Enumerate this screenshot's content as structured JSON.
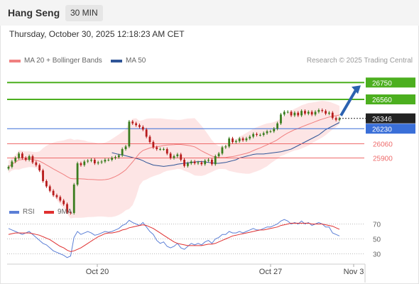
{
  "header": {
    "symbol": "Hang Seng",
    "timeframe": "30 MIN"
  },
  "datetime": "Thursday, October 30, 2025 12:18:23 AM CET",
  "legend": [
    {
      "label": "MA 20 + Bollinger Bands",
      "color": "#f08080"
    },
    {
      "label": "MA 50",
      "color": "#2f5597"
    }
  ],
  "credit": "Research © 2025 Trading Central",
  "chart_data": {
    "type": "candlestick",
    "y_range": [
      25480,
      26880
    ],
    "x_tick_labels": [
      "Oct 20",
      "Oct 27",
      "Nov 3"
    ],
    "last_price": 26346,
    "levels": [
      {
        "value": 26750,
        "label": "26750",
        "kind": "resistance",
        "color": "#4caf1f"
      },
      {
        "value": 26560,
        "label": "26560",
        "kind": "resistance",
        "color": "#4caf1f"
      },
      {
        "value": 26230,
        "label": "26230",
        "kind": "pivot",
        "color": "#3a6fd8"
      },
      {
        "value": 26060,
        "label": "26060",
        "kind": "support",
        "color": "#ee6a6a"
      },
      {
        "value": 25900,
        "label": "25900",
        "kind": "support",
        "color": "#ee6a6a"
      }
    ],
    "close_series": [
      25800,
      25860,
      25900,
      25950,
      25900,
      25880,
      25920,
      25850,
      25820,
      25760,
      25640,
      25580,
      25530,
      25480,
      25460,
      25420,
      25380,
      25290,
      25280,
      25600,
      25840,
      25820,
      25860,
      25870,
      25880,
      25840,
      25850,
      25860,
      25880,
      25880,
      25900,
      25910,
      25930,
      26000,
      26030,
      26310,
      26290,
      26270,
      26250,
      26220,
      26140,
      26080,
      26020,
      26000,
      26000,
      26000,
      25950,
      25900,
      25920,
      25940,
      25880,
      25810,
      25840,
      25860,
      25840,
      25850,
      25830,
      25870,
      25880,
      25830,
      25920,
      25950,
      26020,
      26030,
      26120,
      26080,
      26090,
      26120,
      26100,
      26120,
      26140,
      26170,
      26160,
      26160,
      26180,
      26200,
      26200,
      26230,
      26290,
      26390,
      26420,
      26420,
      26380,
      26410,
      26380,
      26430,
      26400,
      26420,
      26390,
      26420,
      26440,
      26430,
      26400,
      26410,
      26350,
      26330,
      26346
    ],
    "ma50": [
      25960,
      25950,
      25940,
      25935,
      25925,
      25915,
      25905,
      25895,
      25885,
      25870,
      25850,
      25835,
      25820,
      25815,
      25810,
      25805,
      25810,
      25815,
      25820,
      25830,
      25835,
      25840,
      25845,
      25850,
      25855,
      25860,
      25860,
      25855,
      25850,
      25845,
      25840,
      25840,
      25845,
      25850,
      25860,
      25870,
      25880,
      25900,
      25910,
      25920,
      25930,
      25940,
      25945,
      25945,
      25945,
      25950,
      25955,
      25960,
      25965,
      25970,
      25980,
      25990,
      26000,
      26020,
      26040,
      26060,
      26080,
      26100,
      26120,
      26140,
      26160,
      26190,
      26220,
      26240,
      26260,
      26280,
      26300
    ],
    "ma50_start_index": 30,
    "rsi": {
      "y_ticks": [
        70,
        50,
        30
      ],
      "y_range": [
        20,
        80
      ],
      "legend": [
        {
          "label": "RSI",
          "color": "#5b7fd6"
        },
        {
          "label": "9MA",
          "color": "#e03030"
        }
      ],
      "rsi_values": [
        64,
        62,
        60,
        58,
        56,
        58,
        60,
        56,
        52,
        48,
        44,
        42,
        38,
        34,
        32,
        30,
        28,
        25,
        27,
        52,
        60,
        56,
        58,
        60,
        58,
        55,
        56,
        58,
        60,
        59,
        60,
        62,
        64,
        68,
        70,
        75,
        72,
        70,
        68,
        72,
        66,
        60,
        56,
        48,
        44,
        46,
        40,
        38,
        40,
        44,
        38,
        36,
        40,
        44,
        42,
        44,
        42,
        46,
        48,
        44,
        50,
        52,
        56,
        56,
        60,
        58,
        58,
        60,
        58,
        60,
        62,
        64,
        62,
        62,
        64,
        66,
        66,
        68,
        70,
        74,
        76,
        74,
        70,
        72,
        70,
        74,
        70,
        72,
        68,
        70,
        72,
        70,
        66,
        66,
        58,
        56,
        54
      ],
      "ma9_values": [
        56,
        57,
        58,
        58,
        58,
        58,
        58,
        57,
        56,
        55,
        53,
        51,
        49,
        46,
        43,
        40,
        38,
        35,
        33,
        34,
        36,
        38,
        41,
        44,
        47,
        50,
        53,
        55,
        57,
        58,
        58,
        59,
        60,
        62,
        63,
        65,
        66,
        67,
        68,
        69,
        68,
        66,
        64,
        61,
        58,
        55,
        52,
        49,
        46,
        44,
        43,
        42,
        41,
        41,
        41,
        41,
        41,
        42,
        43,
        43,
        44,
        46,
        48,
        50,
        52,
        54,
        55,
        56,
        57,
        58,
        59,
        60,
        61,
        62,
        62,
        63,
        64,
        65,
        66,
        68,
        69,
        70,
        71,
        71,
        71,
        71,
        71,
        71,
        70,
        70,
        70,
        70,
        69,
        68,
        67,
        65,
        63
      ]
    }
  }
}
